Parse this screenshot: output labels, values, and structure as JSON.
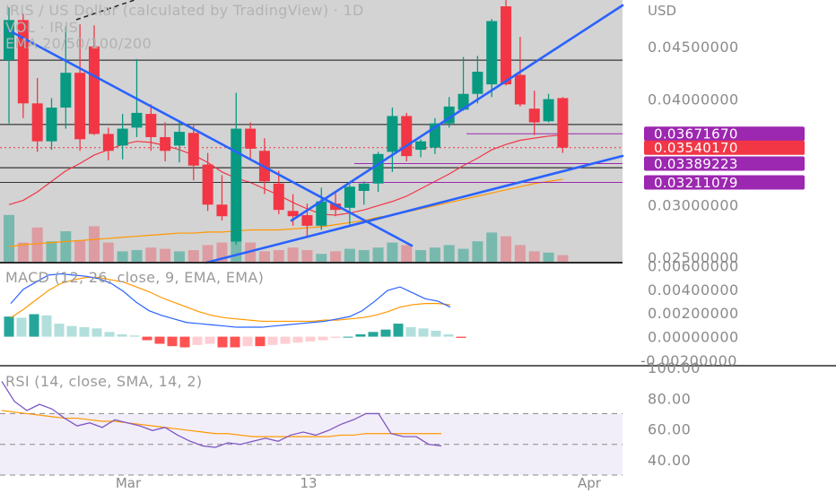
{
  "main": {
    "title": "IRIS / US Dollar (calculated by TradingView) · 1D",
    "subtitle": "VOL · IRIS",
    "ema_label": "EMA 20/50/100/200",
    "currency": "USD",
    "y_ticks": [
      "0.04500000",
      "0.04000000",
      "0.03000000",
      "0.02500000"
    ],
    "price_tags": [
      {
        "value": "0.03671670",
        "color": "#9c27b0"
      },
      {
        "value": "0.03540170",
        "color": "#f23645"
      },
      {
        "value": "0.03389223",
        "color": "#9c27b0"
      },
      {
        "value": "0.03211079",
        "color": "#9c27b0"
      }
    ]
  },
  "macd": {
    "label": "MACD (12, 26, close, 9, EMA, EMA)",
    "y_ticks": [
      "0.00600000",
      "0.00400000",
      "0.00200000",
      "0.00000000",
      "-0.00200000"
    ]
  },
  "rsi": {
    "label": "RSI (14, close, SMA, 14, 2)",
    "y_ticks": [
      "100.00",
      "80.00",
      "60.00",
      "40.00"
    ]
  },
  "x_labels": [
    "Mar",
    "13",
    "Apr"
  ],
  "colors": {
    "up": "#089981",
    "down": "#f23645",
    "trend": "#2962ff",
    "ema_short": "#f23645",
    "ema_long": "#ff9800",
    "macd_line": "#2962ff",
    "signal_line": "#ff9800",
    "rsi_line": "#7e57c2",
    "plot_bg": "#d3d3d3",
    "level_line": "#9c27b0"
  },
  "chart_data": [
    {
      "type": "candlestick",
      "title": "IRIS / US Dollar (calculated by TradingView) · 1D",
      "y_axis_range": [
        0.0245,
        0.0494
      ],
      "ohlc": [
        {
          "o": 0.0437,
          "h": 0.0487,
          "l": 0.0377,
          "c": 0.0475
        },
        {
          "o": 0.0475,
          "h": 0.0481,
          "l": 0.0382,
          "c": 0.0396
        },
        {
          "o": 0.0396,
          "h": 0.042,
          "l": 0.035,
          "c": 0.036
        },
        {
          "o": 0.036,
          "h": 0.0401,
          "l": 0.0352,
          "c": 0.0392
        },
        {
          "o": 0.0392,
          "h": 0.0469,
          "l": 0.0372,
          "c": 0.0425
        },
        {
          "o": 0.0425,
          "h": 0.0471,
          "l": 0.0351,
          "c": 0.0362
        },
        {
          "o": 0.045,
          "h": 0.047,
          "l": 0.0366,
          "c": 0.0367
        },
        {
          "o": 0.0367,
          "h": 0.0373,
          "l": 0.0342,
          "c": 0.0351
        },
        {
          "o": 0.0356,
          "h": 0.0386,
          "l": 0.0343,
          "c": 0.0372
        },
        {
          "o": 0.0373,
          "h": 0.0438,
          "l": 0.0364,
          "c": 0.0387
        },
        {
          "o": 0.0386,
          "h": 0.0395,
          "l": 0.0351,
          "c": 0.0364
        },
        {
          "o": 0.0364,
          "h": 0.0378,
          "l": 0.0341,
          "c": 0.0351
        },
        {
          "o": 0.0356,
          "h": 0.038,
          "l": 0.034,
          "c": 0.0369
        },
        {
          "o": 0.0368,
          "h": 0.0375,
          "l": 0.0323,
          "c": 0.0337
        },
        {
          "o": 0.0338,
          "h": 0.0349,
          "l": 0.0294,
          "c": 0.03
        },
        {
          "o": 0.03,
          "h": 0.0328,
          "l": 0.0285,
          "c": 0.0289
        },
        {
          "o": 0.0265,
          "h": 0.0406,
          "l": 0.0262,
          "c": 0.0372
        },
        {
          "o": 0.0372,
          "h": 0.0378,
          "l": 0.0342,
          "c": 0.0353
        },
        {
          "o": 0.0351,
          "h": 0.0363,
          "l": 0.031,
          "c": 0.0322
        },
        {
          "o": 0.032,
          "h": 0.0332,
          "l": 0.0291,
          "c": 0.0295
        },
        {
          "o": 0.0294,
          "h": 0.031,
          "l": 0.028,
          "c": 0.0289
        },
        {
          "o": 0.029,
          "h": 0.0301,
          "l": 0.027,
          "c": 0.028
        },
        {
          "o": 0.028,
          "h": 0.0316,
          "l": 0.0276,
          "c": 0.0303
        },
        {
          "o": 0.0301,
          "h": 0.0312,
          "l": 0.0289,
          "c": 0.0295
        },
        {
          "o": 0.0297,
          "h": 0.0319,
          "l": 0.0281,
          "c": 0.0317
        },
        {
          "o": 0.0313,
          "h": 0.0322,
          "l": 0.03,
          "c": 0.032
        },
        {
          "o": 0.032,
          "h": 0.035,
          "l": 0.0312,
          "c": 0.0348
        },
        {
          "o": 0.035,
          "h": 0.0392,
          "l": 0.0331,
          "c": 0.0384
        },
        {
          "o": 0.0384,
          "h": 0.0387,
          "l": 0.0341,
          "c": 0.0346
        },
        {
          "o": 0.0352,
          "h": 0.0362,
          "l": 0.0345,
          "c": 0.036
        },
        {
          "o": 0.0354,
          "h": 0.0382,
          "l": 0.0348,
          "c": 0.0377
        },
        {
          "o": 0.0377,
          "h": 0.0402,
          "l": 0.0373,
          "c": 0.0393
        },
        {
          "o": 0.039,
          "h": 0.044,
          "l": 0.0389,
          "c": 0.0405
        },
        {
          "o": 0.0405,
          "h": 0.0441,
          "l": 0.0396,
          "c": 0.0426
        },
        {
          "o": 0.0414,
          "h": 0.0476,
          "l": 0.0402,
          "c": 0.0474
        },
        {
          "o": 0.0488,
          "h": 0.0494,
          "l": 0.0413,
          "c": 0.0414
        },
        {
          "o": 0.0423,
          "h": 0.0459,
          "l": 0.0393,
          "c": 0.0395
        },
        {
          "o": 0.0391,
          "h": 0.0408,
          "l": 0.0366,
          "c": 0.0378
        },
        {
          "o": 0.0379,
          "h": 0.0405,
          "l": 0.0378,
          "c": 0.04
        },
        {
          "o": 0.0401,
          "h": 0.0402,
          "l": 0.0349,
          "c": 0.0354
        }
      ],
      "volume": [
        0.38,
        0.16,
        0.28,
        0.17,
        0.25,
        0.18,
        0.29,
        0.16,
        0.09,
        0.1,
        0.12,
        0.11,
        0.09,
        0.1,
        0.14,
        0.16,
        0.23,
        0.16,
        0.09,
        0.1,
        0.12,
        0.1,
        0.07,
        0.09,
        0.11,
        0.1,
        0.12,
        0.16,
        0.14,
        0.1,
        0.12,
        0.14,
        0.11,
        0.17,
        0.24,
        0.21,
        0.14,
        0.09,
        0.08,
        0.06
      ],
      "ema_short": [
        0.03,
        0.0304,
        0.0312,
        0.0322,
        0.0332,
        0.0339,
        0.0347,
        0.0352,
        0.0357,
        0.036,
        0.0359,
        0.0356,
        0.0352,
        0.0347,
        0.034,
        0.0331,
        0.0325,
        0.0321,
        0.0315,
        0.0309,
        0.0302,
        0.0296,
        0.0291,
        0.029,
        0.0292,
        0.0295,
        0.0299,
        0.0303,
        0.0308,
        0.0315,
        0.0322,
        0.0329,
        0.0337,
        0.0344,
        0.0352,
        0.0357,
        0.0361,
        0.0363,
        0.0365,
        0.0366
      ],
      "ema_long": [
        0.026,
        0.0262,
        0.0263,
        0.0264,
        0.0265,
        0.0266,
        0.0267,
        0.0268,
        0.0269,
        0.027,
        0.0271,
        0.0272,
        0.0273,
        0.0273,
        0.0274,
        0.0274,
        0.0275,
        0.0276,
        0.0276,
        0.0276,
        0.0277,
        0.0278,
        0.0279,
        0.0281,
        0.0283,
        0.0285,
        0.0288,
        0.029,
        0.0293,
        0.0296,
        0.0299,
        0.0302,
        0.0305,
        0.0308,
        0.0311,
        0.0314,
        0.0317,
        0.032,
        0.0322,
        0.0324
      ],
      "levels": [
        0.0437,
        0.0376,
        0.0354,
        0.03389,
        0.03211
      ]
    },
    {
      "type": "bar",
      "title": "MACD (12, 26, close, 9, EMA, EMA)",
      "y_axis_range": [
        -0.0023,
        0.0061
      ],
      "histogram": [
        0.0017,
        0.0016,
        0.0019,
        0.0018,
        0.0011,
        0.0009,
        0.0008,
        0.0007,
        0.0004,
        0.0002,
        0.0001,
        -0.0003,
        -0.0006,
        -0.0008,
        -0.0009,
        -0.0007,
        -0.0006,
        -0.0009,
        -0.0009,
        -0.0008,
        -0.0008,
        -0.0007,
        -0.0006,
        -0.0005,
        -0.0004,
        -0.0003,
        -0.0001,
        0.0,
        0.0002,
        0.0004,
        0.0006,
        0.0011,
        0.0008,
        0.0007,
        0.0005,
        0.0002,
        -0.0001
      ],
      "macd": [
        0.0028,
        0.004,
        0.0046,
        0.0052,
        0.0053,
        0.0052,
        0.0051,
        0.0049,
        0.0045,
        0.0038,
        0.0029,
        0.0022,
        0.0018,
        0.0015,
        0.0012,
        0.0011,
        0.001,
        0.0009,
        0.0008,
        0.0008,
        0.0008,
        0.0009,
        0.001,
        0.0011,
        0.0012,
        0.0013,
        0.0015,
        0.0017,
        0.0022,
        0.003,
        0.0039,
        0.0042,
        0.0037,
        0.0032,
        0.003,
        0.0025
      ],
      "signal": [
        0.0016,
        0.0023,
        0.0031,
        0.0039,
        0.0045,
        0.0048,
        0.005,
        0.005,
        0.0048,
        0.0046,
        0.0042,
        0.0038,
        0.0033,
        0.0029,
        0.0025,
        0.0021,
        0.0018,
        0.0016,
        0.0015,
        0.0014,
        0.0013,
        0.0013,
        0.0013,
        0.0013,
        0.0013,
        0.0014,
        0.0014,
        0.0015,
        0.0016,
        0.0018,
        0.0021,
        0.0025,
        0.0027,
        0.0028,
        0.0028,
        0.0027
      ]
    },
    {
      "type": "line",
      "title": "RSI (14, close, SMA, 14, 2)",
      "y_axis_range": [
        30,
        100
      ],
      "bands": [
        70,
        50,
        30
      ],
      "rsi": [
        91,
        78,
        72,
        76,
        73,
        67,
        62,
        64,
        61,
        66,
        64,
        62,
        59,
        61,
        56,
        52,
        49,
        48,
        51,
        50,
        52,
        54,
        52,
        56,
        58,
        56,
        59,
        63,
        66,
        70,
        70,
        57,
        55,
        55,
        50,
        49
      ],
      "rsi_ma": [
        72,
        71,
        70,
        69,
        68,
        67,
        67,
        66,
        65,
        65,
        64,
        63,
        62,
        61,
        60,
        59,
        58,
        57,
        57,
        56,
        55,
        55,
        55,
        55,
        55,
        55,
        55,
        56,
        56,
        57,
        57,
        57,
        57,
        57,
        57,
        57
      ]
    }
  ]
}
